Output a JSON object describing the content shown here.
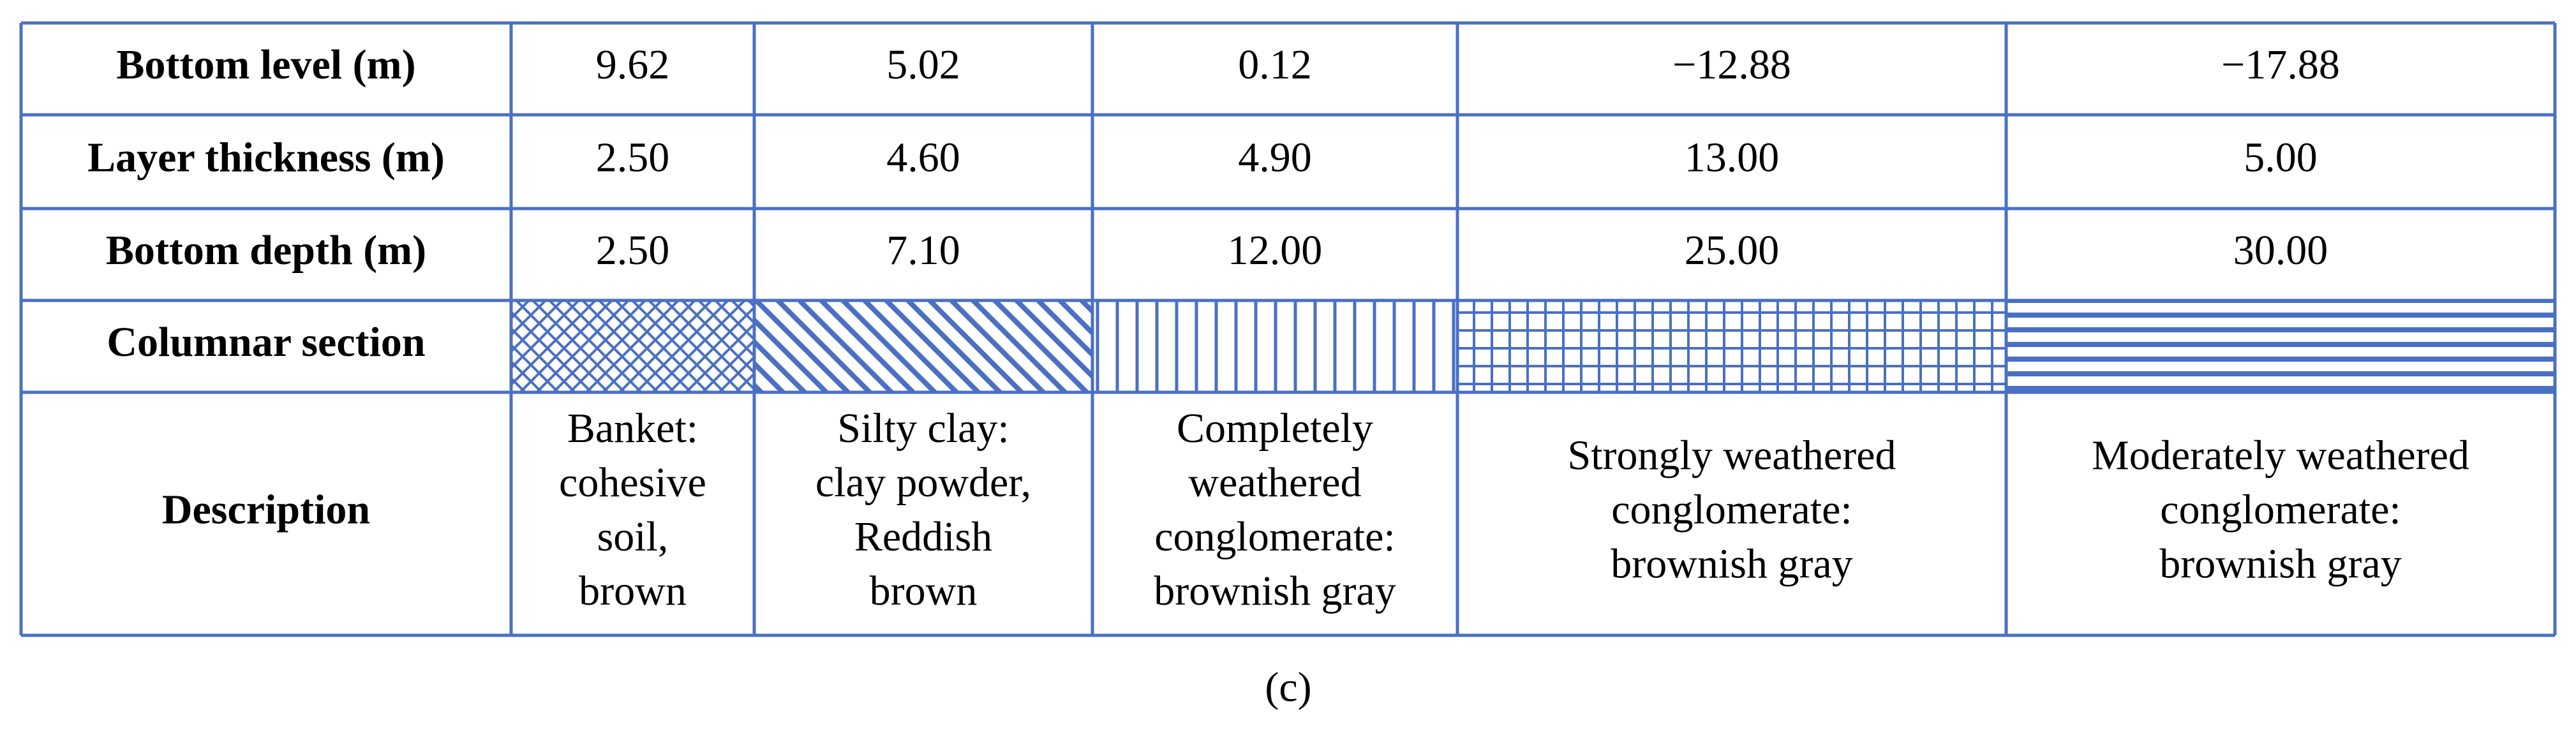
{
  "table": {
    "rows": [
      {
        "label": "Bottom level (m)",
        "cells": [
          "9.62",
          "5.02",
          "0.12",
          "−12.88",
          "−17.88"
        ]
      },
      {
        "label": "Layer thickness (m)",
        "cells": [
          "2.50",
          "4.60",
          "4.90",
          "13.00",
          "5.00"
        ]
      },
      {
        "label": "Bottom depth (m)",
        "cells": [
          "2.50",
          "7.10",
          "12.00",
          "25.00",
          "30.00"
        ]
      },
      {
        "label": "Columnar section"
      },
      {
        "label": "Description",
        "cells": [
          [
            "Banket:",
            "cohesive",
            "soil,",
            "brown"
          ],
          [
            "Silty clay:",
            "clay powder,",
            "Reddish",
            "brown"
          ],
          [
            "Completely",
            "weathered",
            "conglomerate:",
            "brownish gray"
          ],
          [
            "Strongly weathered",
            "conglomerate:",
            "brownish gray"
          ],
          [
            "Moderately weathered",
            "conglomerate:",
            "brownish gray"
          ]
        ]
      }
    ]
  },
  "caption": "(c)"
}
